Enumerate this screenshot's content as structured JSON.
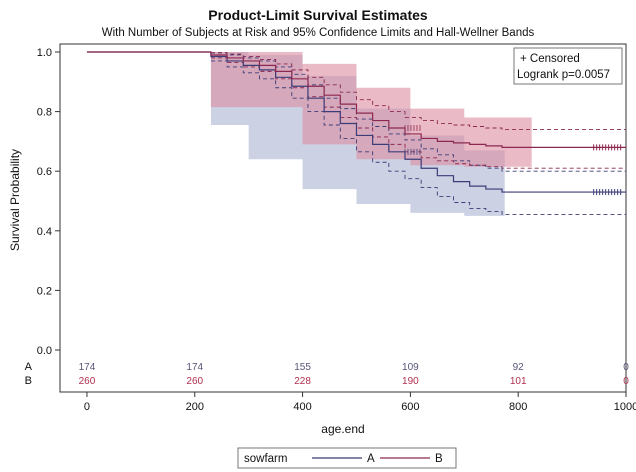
{
  "chart_data": {
    "type": "line",
    "subtype": "kaplan-meier step",
    "title": "Product-Limit Survival Estimates",
    "subtitle": "With Number of Subjects at Risk and 95% Confidence Limits and Hall-Wellner Bands",
    "xlabel": "age.end",
    "ylabel": "Survival Probability",
    "xlim": [
      -50,
      1000
    ],
    "ylim": [
      0.0,
      1.0
    ],
    "x_ticks": [
      0,
      200,
      400,
      600,
      800,
      1000
    ],
    "x_tick_labels": [
      "0",
      "200",
      "400",
      "600",
      "800",
      "1000"
    ],
    "y_ticks": [
      0.0,
      0.2,
      0.4,
      0.6,
      0.8,
      1.0
    ],
    "y_tick_labels": [
      "0.0",
      "0.2",
      "0.4",
      "0.6",
      "0.8",
      "1.0"
    ],
    "grid": false,
    "inset": {
      "censored_label": "+ Censored",
      "logrank_label": "Logrank p=0.0057",
      "position": "top-right"
    },
    "legend": {
      "title": "sowfarm",
      "position": "bottom-center",
      "entries": [
        "A",
        "B"
      ]
    },
    "series": [
      {
        "name": "A",
        "color": "#3c3c78",
        "band_color": "#aab4d2",
        "x": [
          0,
          230,
          260,
          290,
          320,
          350,
          380,
          410,
          440,
          470,
          500,
          530,
          560,
          590,
          620,
          650,
          680,
          710,
          740,
          770,
          1000
        ],
        "y": [
          1.0,
          0.985,
          0.97,
          0.955,
          0.94,
          0.915,
          0.885,
          0.845,
          0.8,
          0.76,
          0.72,
          0.69,
          0.665,
          0.64,
          0.61,
          0.585,
          0.565,
          0.55,
          0.54,
          0.53,
          0.53
        ],
        "ci_lower": [
          1.0,
          0.97,
          0.95,
          0.93,
          0.91,
          0.88,
          0.845,
          0.8,
          0.755,
          0.71,
          0.665,
          0.63,
          0.6,
          0.575,
          0.545,
          0.515,
          0.495,
          0.475,
          0.465,
          0.455,
          0.455
        ],
        "ci_upper": [
          1.0,
          0.997,
          0.99,
          0.98,
          0.97,
          0.95,
          0.925,
          0.89,
          0.845,
          0.81,
          0.775,
          0.75,
          0.725,
          0.705,
          0.675,
          0.655,
          0.635,
          0.62,
          0.61,
          0.6,
          0.6
        ],
        "band_x": [
          230,
          300,
          400,
          500,
          600,
          700,
          775
        ],
        "band_lower": [
          0.755,
          0.755,
          0.64,
          0.54,
          0.49,
          0.46,
          0.45
        ],
        "band_upper": [
          1.0,
          0.99,
          0.92,
          0.81,
          0.72,
          0.67,
          0.65
        ],
        "at_risk": [
          "174",
          "174",
          "155",
          "109",
          "92",
          "0"
        ]
      },
      {
        "name": "B",
        "color": "#8c2850",
        "band_color": "#dc8ca0",
        "x": [
          0,
          230,
          260,
          290,
          320,
          350,
          380,
          410,
          440,
          470,
          500,
          530,
          560,
          590,
          620,
          650,
          680,
          710,
          740,
          770,
          800,
          830,
          1000
        ],
        "y": [
          1.0,
          0.99,
          0.98,
          0.97,
          0.955,
          0.935,
          0.91,
          0.885,
          0.855,
          0.825,
          0.795,
          0.77,
          0.745,
          0.725,
          0.71,
          0.7,
          0.695,
          0.69,
          0.685,
          0.68,
          0.68,
          0.68,
          0.68
        ],
        "ci_lower": [
          1.0,
          0.98,
          0.965,
          0.95,
          0.935,
          0.91,
          0.88,
          0.85,
          0.815,
          0.78,
          0.745,
          0.715,
          0.69,
          0.665,
          0.645,
          0.635,
          0.625,
          0.62,
          0.615,
          0.61,
          0.61,
          0.61,
          0.61
        ],
        "ci_upper": [
          1.0,
          0.998,
          0.993,
          0.985,
          0.975,
          0.96,
          0.94,
          0.915,
          0.89,
          0.865,
          0.84,
          0.82,
          0.8,
          0.78,
          0.77,
          0.76,
          0.755,
          0.75,
          0.745,
          0.74,
          0.74,
          0.74,
          0.74
        ],
        "band_x": [
          230,
          400,
          500,
          600,
          700,
          825
        ],
        "band_lower": [
          0.815,
          0.815,
          0.69,
          0.64,
          0.62,
          0.615
        ],
        "band_upper": [
          1.0,
          0.96,
          0.88,
          0.81,
          0.78,
          0.75
        ],
        "at_risk": [
          "260",
          "260",
          "228",
          "190",
          "101",
          "0"
        ]
      }
    ],
    "at_risk_x": [
      0,
      200,
      400,
      600,
      800,
      1000
    ]
  }
}
